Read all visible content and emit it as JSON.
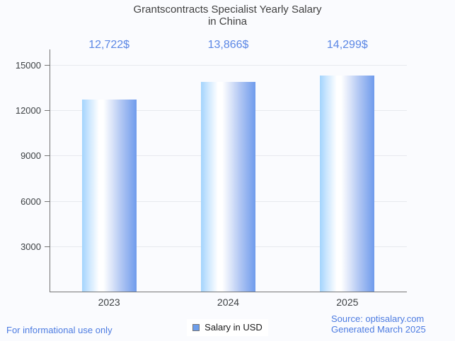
{
  "title": {
    "line1": "Grantscontracts Specialist Yearly Salary",
    "line2": "in China"
  },
  "legend": {
    "label": "Salary in USD"
  },
  "footer": {
    "disclaimer": "For informational use only",
    "source_line1": "Source: optisalary.com",
    "source_line2": "Generated March 2025"
  },
  "colors": {
    "background": "#fafbfe",
    "title_text": "#404040",
    "value_label_text": "#5b87e5",
    "footer_text": "#4c7be1",
    "axis_line": "#757575",
    "gridline": "#e7e9ee",
    "tick_label_text": "#3c4043",
    "legend_swatch": "#6d9eeb",
    "bar_gradient_left": "#a3d4fd",
    "bar_gradient_mid": "#ffffff",
    "bar_gradient_right": "#6f9bec"
  },
  "chart_data": {
    "type": "bar",
    "title": "Grantscontracts Specialist Yearly Salary in China",
    "categories": [
      "2023",
      "2024",
      "2025"
    ],
    "series": [
      {
        "name": "Salary in USD",
        "values": [
          12722,
          13866,
          14299
        ]
      }
    ],
    "value_labels": [
      "12,722$",
      "13,866$",
      "14,299$"
    ],
    "xlabel": "",
    "ylabel": "",
    "y_ticks": [
      3000,
      6000,
      9000,
      12000,
      15000
    ],
    "ylim": [
      0,
      16000
    ],
    "grid": true,
    "legend_position": "bottom"
  }
}
